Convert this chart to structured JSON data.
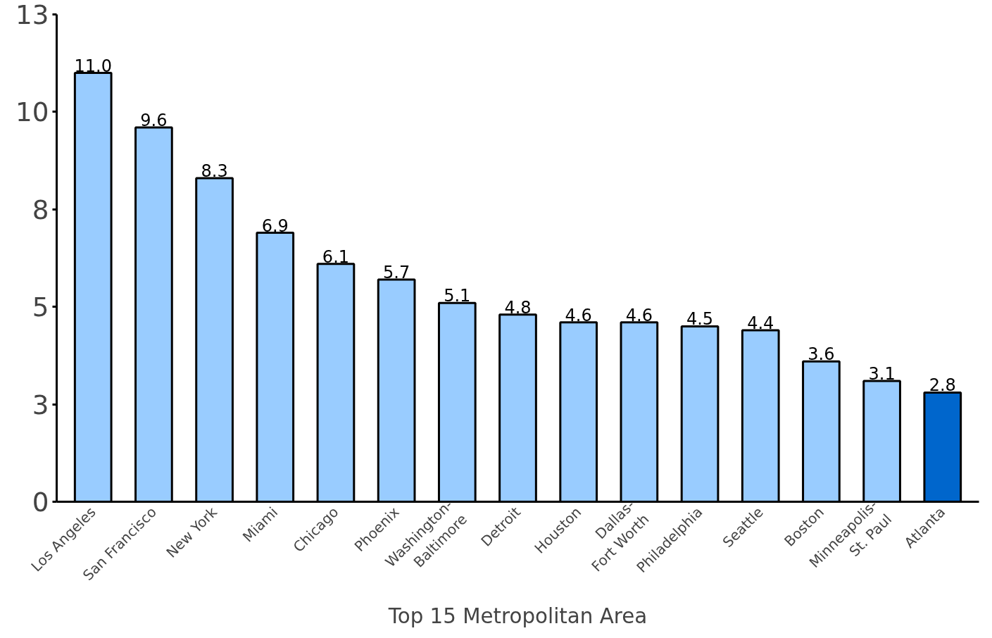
{
  "chart_data": {
    "type": "bar",
    "xlabel": "Top 15 Metropolitan Area",
    "categories": [
      "Los Angeles",
      "San Francisco",
      "New York",
      "Miami",
      "Chicago",
      "Phoenix",
      "Washington-Baltimore",
      "Detroit",
      "Houston",
      "Dallas-Fort Worth",
      "Philadelphia",
      "Seattle",
      "Boston",
      "Minneapolis-St. Paul",
      "Atlanta"
    ],
    "values": [
      11.0,
      9.6,
      8.3,
      6.9,
      6.1,
      5.7,
      5.1,
      4.8,
      4.6,
      4.6,
      4.5,
      4.4,
      3.6,
      3.1,
      2.8
    ],
    "colors": [
      "#99ccff",
      "#99ccff",
      "#99ccff",
      "#99ccff",
      "#99ccff",
      "#99ccff",
      "#99ccff",
      "#99ccff",
      "#99ccff",
      "#99ccff",
      "#99ccff",
      "#99ccff",
      "#99ccff",
      "#99ccff",
      "#0066cc"
    ],
    "ylim": [
      0,
      12.5
    ],
    "yticks": [
      0,
      {
        "value": 2.5,
        "label": "3"
      },
      5,
      {
        "value": 7.5,
        "label": "8"
      },
      10,
      {
        "value": 12.5,
        "label": "13"
      }
    ],
    "value_labels": [
      "11.0",
      "9.6",
      "8.3",
      "6.9",
      "6.1",
      "5.7",
      "5.1",
      "4.8",
      "4.6",
      "4.6",
      "4.5",
      "4.4",
      "3.6",
      "3.1",
      "2.8"
    ],
    "grid": false
  }
}
